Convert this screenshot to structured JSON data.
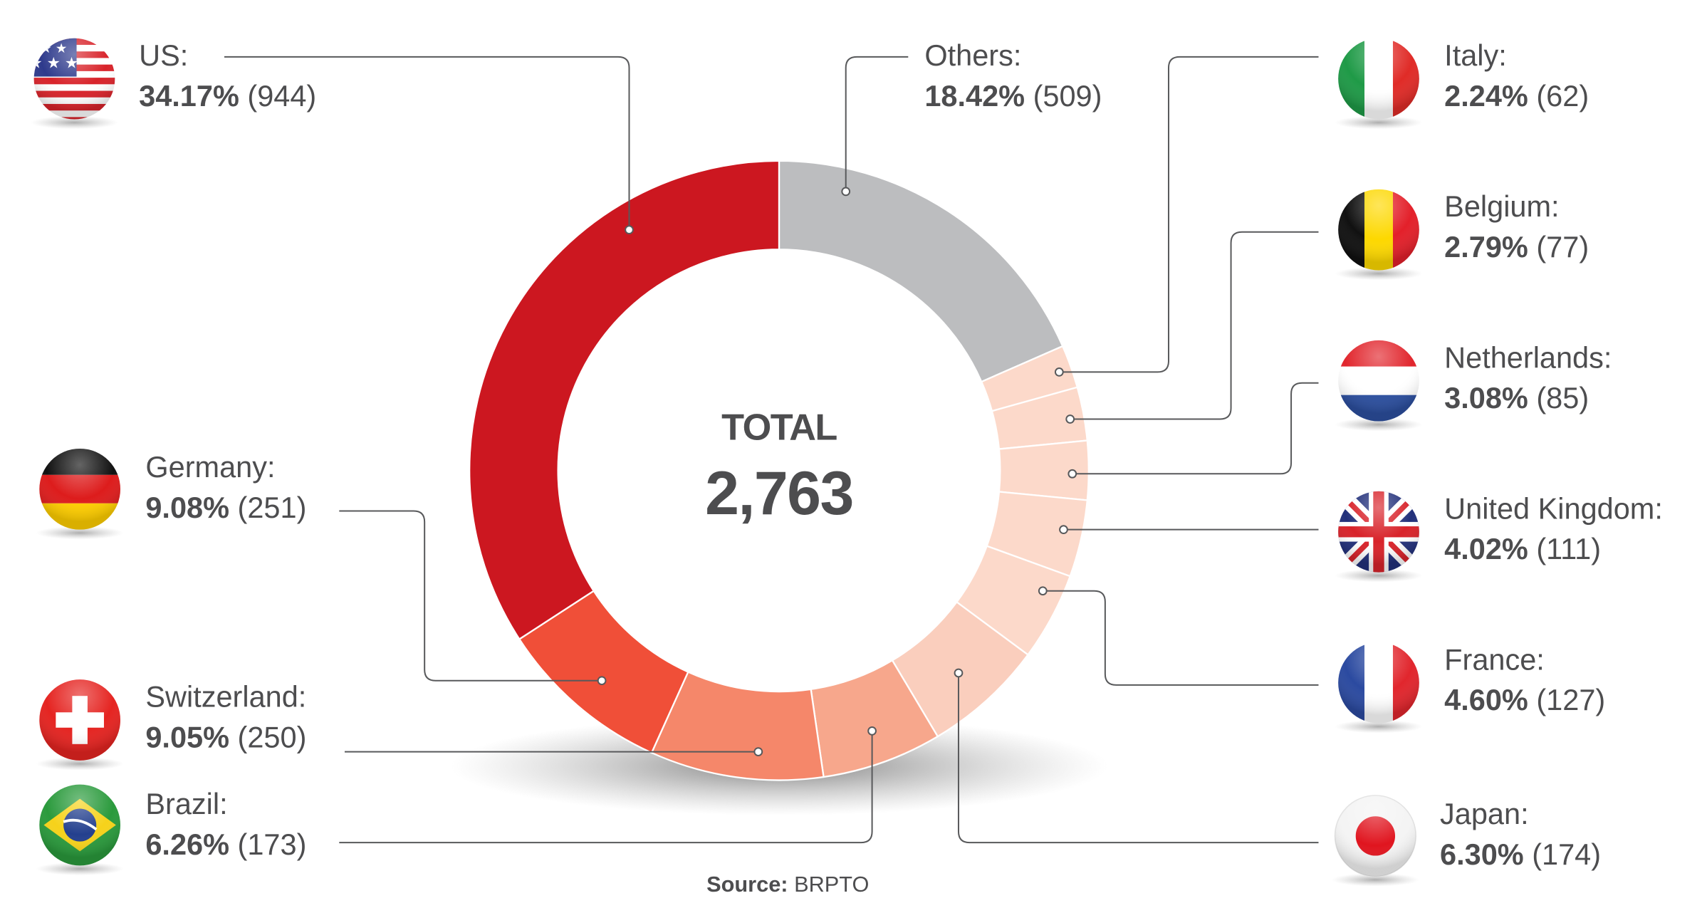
{
  "chart_data": {
    "type": "pie",
    "variant": "donut",
    "center_label": "TOTAL",
    "total": "2,763",
    "source_label": "Source:",
    "source": "BRPTO",
    "slices": [
      {
        "key": "others",
        "name": "Others:",
        "percent": "18.42%",
        "count": "(509)",
        "value": 509,
        "color": "#BCBDBF"
      },
      {
        "key": "italy",
        "name": "Italy:",
        "percent": "2.24%",
        "count": "(62)",
        "value": 62,
        "color": "#FCD9CA"
      },
      {
        "key": "belgium",
        "name": "Belgium:",
        "percent": "2.79%",
        "count": "(77)",
        "value": 77,
        "color": "#FCD9CA"
      },
      {
        "key": "netherlands",
        "name": "Netherlands:",
        "percent": "3.08%",
        "count": "(85)",
        "value": 85,
        "color": "#FCD9CA"
      },
      {
        "key": "uk",
        "name": "United Kingdom:",
        "percent": "4.02%",
        "count": "(111)",
        "value": 111,
        "color": "#FCD9CA"
      },
      {
        "key": "france",
        "name": "France:",
        "percent": "4.60%",
        "count": "(127)",
        "value": 127,
        "color": "#FCD9CA"
      },
      {
        "key": "japan",
        "name": "Japan:",
        "percent": "6.30%",
        "count": "(174)",
        "value": 174,
        "color": "#FACEBD"
      },
      {
        "key": "brazil",
        "name": "Brazil:",
        "percent": "6.26%",
        "count": "(173)",
        "value": 173,
        "color": "#F7A78C"
      },
      {
        "key": "switzerland",
        "name": "Switzerland:",
        "percent": "9.05%",
        "count": "(250)",
        "value": 250,
        "color": "#F5876A"
      },
      {
        "key": "germany",
        "name": "Germany:",
        "percent": "9.08%",
        "count": "(251)",
        "value": 251,
        "color": "#F04F38"
      },
      {
        "key": "us",
        "name": "US:",
        "percent": "34.17%",
        "count": "(944)",
        "value": 944,
        "color": "#CC1720"
      }
    ]
  }
}
